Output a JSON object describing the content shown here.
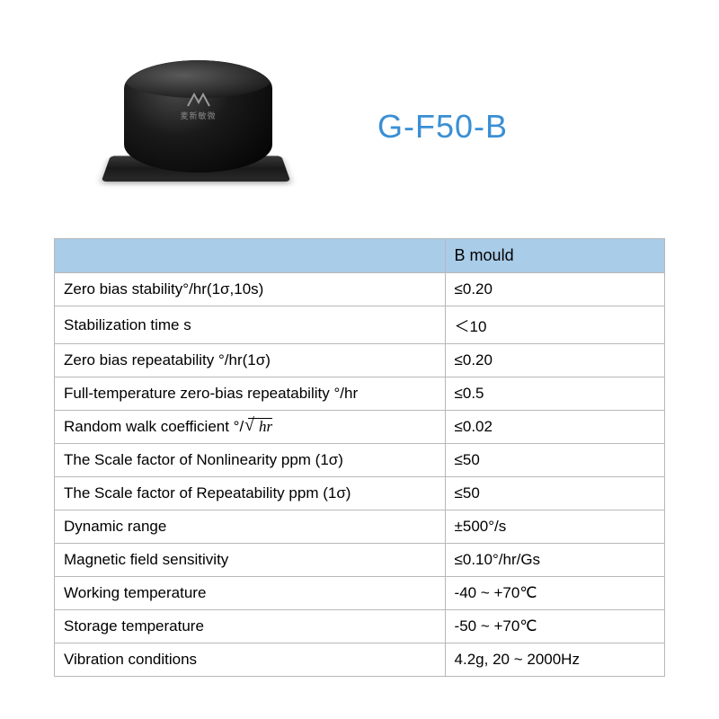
{
  "product": {
    "title": "G-F50-B",
    "logo_text": "麦新敏微",
    "title_color": "#3a8fd4"
  },
  "table": {
    "header_bg": "#a9cce8",
    "border_color": "#b8b8b8",
    "header_param": "",
    "header_value": "B  mould",
    "rows": [
      {
        "param": "Zero bias stability°/hr(1σ,10s)",
        "value": "≤0.20"
      },
      {
        "param": "Stabilization time s",
        "value": "＜10"
      },
      {
        "param": "Zero bias repeatability °/hr(1σ)",
        "value": "≤0.20"
      },
      {
        "param": "Full-temperature zero-bias repeatability °/hr",
        "value": "≤0.5"
      },
      {
        "param": "Random walk coefficient °/",
        "value": "≤0.02",
        "sqrt": "hr"
      },
      {
        "param": "The Scale factor of Nonlinearity ppm (1σ)",
        "value": "≤50"
      },
      {
        "param": "The Scale factor of Repeatability ppm (1σ)",
        "value": "≤50"
      },
      {
        "param": "Dynamic range",
        "value": "±500°/s"
      },
      {
        "param": "Magnetic field sensitivity",
        "value": "≤0.10°/hr/Gs"
      },
      {
        "param": "Working temperature",
        "value": "-40 ~ +70℃"
      },
      {
        "param": "Storage temperature",
        "value": "-50 ~ +70℃"
      },
      {
        "param": "Vibration conditions",
        "value": "4.2g, 20 ~ 2000Hz"
      }
    ]
  }
}
